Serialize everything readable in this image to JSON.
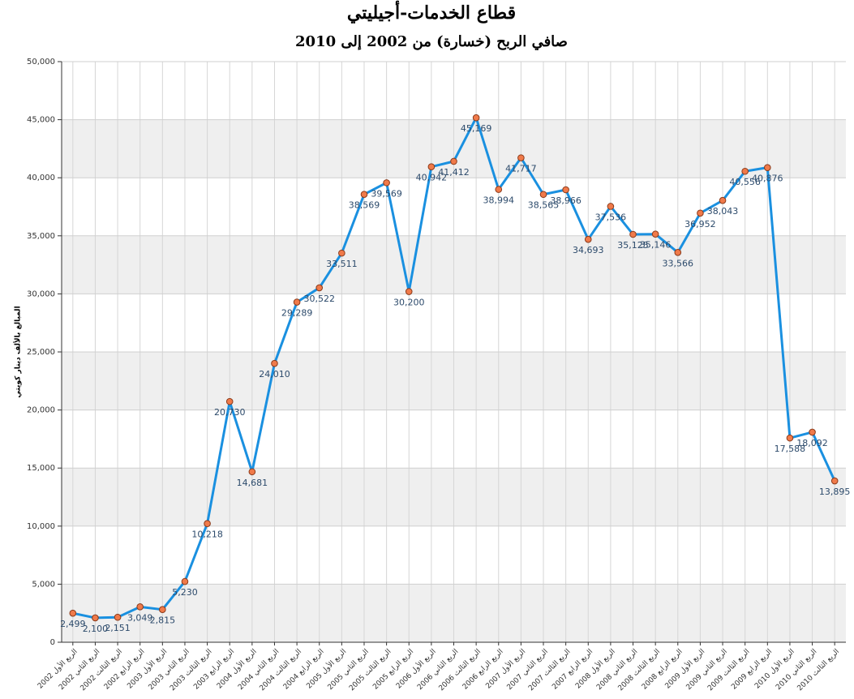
{
  "chart_data": {
    "type": "line",
    "title": "قطاع الخدمات-أجيليتي",
    "subtitle": "صافي الربح (خسارة) من 2002 إلى 2010",
    "y_label": "المبالغ بالألف دينار كويتي",
    "categories": [
      "الربع الأول 2002",
      "الربع الثاني 2002",
      "الربع الثالث 2002",
      "الربع الرابع 2002",
      "الربع الأول 2003",
      "الربع الثاني 2003",
      "الربع الثالث 2003",
      "الربع الرابع 2003",
      "الربع الأول 2004",
      "الربع الثاني 2004",
      "الربع الثالث 2004",
      "الربع الرابع 2004",
      "الربع الأول 2005",
      "الربع الثاني 2005",
      "الربع الثالث 2005",
      "الربع الرابع 2005",
      "الربع الأول 2006",
      "الربع الثاني 2006",
      "الربع الثالث 2006",
      "الربع الرابع 2006",
      "الربع الأول 2007",
      "الربع الثاني 2007",
      "الربع الثالث 2007",
      "الربع الرابع 2007",
      "الربع الأول 2008",
      "الربع الثاني 2008",
      "الربع الثالث 2008",
      "الربع الرابع 2008",
      "الربع الأول 2009",
      "الربع الثاني 2009",
      "الربع الثالث 2009",
      "الربع الرابع 2009",
      "الربع الأول 2010",
      "الربع الثاني 2010",
      "الربع الثالث 2010"
    ],
    "values": [
      2499,
      2100,
      2151,
      3049,
      2815,
      5230,
      10218,
      20730,
      14681,
      24010,
      29289,
      30522,
      33511,
      38569,
      39569,
      30200,
      40942,
      41412,
      45169,
      38994,
      41717,
      38565,
      38966,
      34693,
      37536,
      35125,
      35146,
      33566,
      36952,
      38043,
      40556,
      40876,
      17588,
      18092,
      13895
    ],
    "value_labels": [
      "2,499",
      "2,100",
      "2,151",
      "3,049",
      "2,815",
      "5,230",
      "10,218",
      "20,730",
      "14,681",
      "24,010",
      "29,289",
      "30,522",
      "33,511",
      "38,569",
      "39,569",
      "30,200",
      "40,942",
      "41,412",
      "45,169",
      "38,994",
      "41,717",
      "38,565",
      "38,966",
      "34,693",
      "37,536",
      "35,125",
      "35,146",
      "33,566",
      "36,952",
      "38,043",
      "40,556",
      "40,876",
      "17,588",
      "18,092",
      "13,895"
    ],
    "color": "#1a90e0",
    "marker_color": "#f07a4a",
    "ylim": [
      0,
      50000
    ],
    "yticks": [
      0,
      {
        "value": 5000,
        "label": "5,000"
      },
      {
        "value": 10000,
        "label": "10,000"
      },
      {
        "value": 15000,
        "label": "15,000"
      },
      {
        "value": 20000,
        "label": "20,000"
      },
      {
        "value": 25000,
        "label": "25,000"
      },
      {
        "value": 30000,
        "label": "30,000"
      },
      {
        "value": 35000,
        "label": "35,000"
      },
      {
        "value": 40000,
        "label": "40,000"
      },
      {
        "value": 45000,
        "label": "45,000"
      },
      {
        "value": 50000,
        "label": "50,000"
      }
    ],
    "grid": true
  }
}
